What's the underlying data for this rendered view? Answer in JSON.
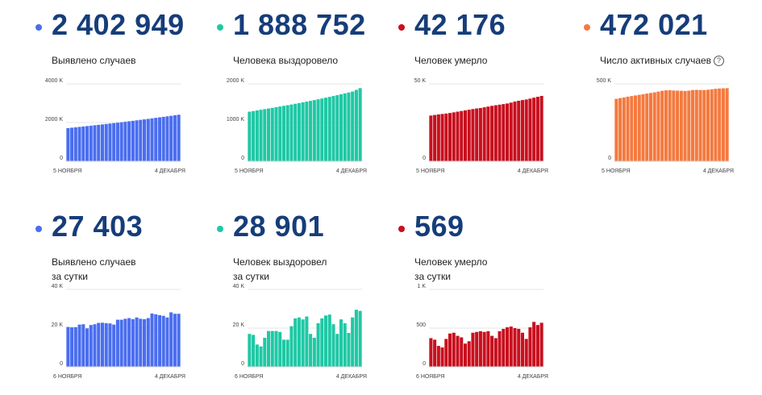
{
  "cards": [
    {
      "value": "2 402 949",
      "label": [
        "Выявлено случаев"
      ],
      "color": "#4a6ef0",
      "chart_data": {
        "type": "bar",
        "x_start_label": "5 НОЯБРЯ",
        "x_end_label": "4 ДЕКАБРЯ",
        "y_ticks": [
          {
            "v": 0,
            "t": "0"
          },
          {
            "v": 2000000,
            "t": "2000 K"
          },
          {
            "v": 4000000,
            "t": "4000 K"
          }
        ],
        "ylim": [
          0,
          4000000
        ],
        "values": [
          1712858,
          1733440,
          1753836,
          1774334,
          1795344,
          1817109,
          1836960,
          1858568,
          1880551,
          1902588,
          1925825,
          1948603,
          1971013,
          1991998,
          2015608,
          2039926,
          2064748,
          2089329,
          2114502,
          2138828,
          2162503,
          2187990,
          2215533,
          2242633,
          2269316,
          2295654,
          2321014,
          2347401,
          2375546,
          2402949
        ]
      }
    },
    {
      "value": "1 888 752",
      "label": [
        "Человека выздоровело"
      ],
      "color": "#1fc8a5",
      "chart_data": {
        "type": "bar",
        "x_start_label": "5 НОЯБРЯ",
        "x_end_label": "4 ДЕКАБРЯ",
        "y_ticks": [
          {
            "v": 0,
            "t": "0"
          },
          {
            "v": 1000000,
            "t": "1000 K"
          },
          {
            "v": 2000000,
            "t": "2000 K"
          }
        ],
        "ylim": [
          0,
          2000000
        ],
        "values": [
          1280000,
          1296000,
          1313000,
          1330000,
          1347000,
          1363000,
          1379000,
          1396000,
          1414000,
          1431000,
          1448000,
          1466000,
          1484000,
          1503000,
          1522000,
          1541000,
          1560000,
          1580000,
          1600000,
          1621000,
          1642000,
          1663000,
          1685000,
          1707000,
          1730000,
          1753000,
          1776000,
          1800000,
          1844000,
          1888752
        ]
      }
    },
    {
      "value": "42 176",
      "label": [
        "Человек умерло"
      ],
      "color": "#c8101e",
      "chart_data": {
        "type": "bar",
        "x_start_label": "5 НОЯБРЯ",
        "x_end_label": "4 ДЕКАБРЯ",
        "y_ticks": [
          {
            "v": 0,
            "t": "0"
          },
          {
            "v": 50000,
            "t": "50 K"
          }
        ],
        "ylim": [
          0,
          50000
        ],
        "values": [
          29509,
          29887,
          30251,
          30537,
          30793,
          31161,
          31593,
          32032,
          32443,
          32885,
          33308,
          33717,
          34068,
          34387,
          34850,
          35311,
          35778,
          36179,
          36540,
          36919,
          37300,
          37873,
          38558,
          39068,
          39527,
          39895,
          40464,
          41053,
          41607,
          42176
        ]
      }
    },
    {
      "value": "472 021",
      "label": [
        "Число активных случаев"
      ],
      "help": "?",
      "color": "#f47a3f",
      "chart_data": {
        "type": "bar",
        "x_start_label": "5 НОЯБРЯ",
        "x_end_label": "4 ДЕКАБРЯ",
        "y_ticks": [
          {
            "v": 0,
            "t": "0"
          },
          {
            "v": 500000,
            "t": "500 K"
          }
        ],
        "ylim": [
          0,
          500000
        ],
        "values": [
          403000,
          408000,
          412000,
          417000,
          421000,
          425000,
          429000,
          433000,
          437000,
          441000,
          445000,
          450000,
          455000,
          458000,
          459000,
          457000,
          456000,
          455000,
          454000,
          456000,
          460000,
          461000,
          460000,
          460000,
          462000,
          465000,
          468000,
          470000,
          471000,
          472021
        ]
      }
    },
    {
      "value": "27 403",
      "label": [
        "Выявлено случаев",
        "за сутки"
      ],
      "color": "#4a6ef0",
      "chart_data": {
        "type": "bar",
        "x_start_label": "6 НОЯБРЯ",
        "x_end_label": "4 ДЕКАБРЯ",
        "y_ticks": [
          {
            "v": 0,
            "t": "0"
          },
          {
            "v": 20000,
            "t": "20 K"
          },
          {
            "v": 40000,
            "t": "40 K"
          }
        ],
        "ylim": [
          0,
          40000
        ],
        "values": [
          20582,
          20396,
          20498,
          21798,
          21983,
          19851,
          21608,
          21983,
          22702,
          22778,
          22572,
          22410,
          21798,
          24326,
          24318,
          24822,
          25173,
          24581,
          25487,
          24822,
          24581,
          25173,
          27543,
          27100,
          26683,
          26338,
          25487,
          28145,
          27403,
          27403
        ]
      }
    },
    {
      "value": "28 901",
      "label": [
        "Человек выздоровел",
        "за сутки"
      ],
      "color": "#1fc8a5",
      "chart_data": {
        "type": "bar",
        "x_start_label": "6 НОЯБРЯ",
        "x_end_label": "4 ДЕКАБРЯ",
        "y_ticks": [
          {
            "v": 0,
            "t": "0"
          },
          {
            "v": 20000,
            "t": "20 K"
          },
          {
            "v": 40000,
            "t": "40 K"
          }
        ],
        "ylim": [
          0,
          40000
        ],
        "values": [
          17000,
          16500,
          11500,
          10500,
          15000,
          18500,
          18500,
          18500,
          18000,
          14000,
          14000,
          21000,
          25000,
          25500,
          24500,
          26000,
          17000,
          15000,
          22500,
          25000,
          26500,
          27000,
          22000,
          17000,
          24500,
          22500,
          17500,
          25500,
          29500,
          28901
        ]
      }
    },
    {
      "value": "569",
      "label": [
        "Человек умерло",
        "за сутки"
      ],
      "color": "#c8101e",
      "chart_data": {
        "type": "bar",
        "x_start_label": "6 НОЯБРЯ",
        "x_end_label": "4 ДЕКАБРЯ",
        "y_ticks": [
          {
            "v": 0,
            "t": "0"
          },
          {
            "v": 500,
            "t": "500"
          },
          {
            "v": 1000,
            "t": "1 K"
          }
        ],
        "ylim": [
          0,
          1000
        ],
        "values": [
          370,
          350,
          270,
          250,
          360,
          430,
          440,
          400,
          380,
          300,
          330,
          440,
          450,
          460,
          450,
          460,
          400,
          370,
          460,
          490,
          510,
          520,
          500,
          490,
          440,
          360,
          510,
          580,
          540,
          569
        ]
      }
    }
  ]
}
